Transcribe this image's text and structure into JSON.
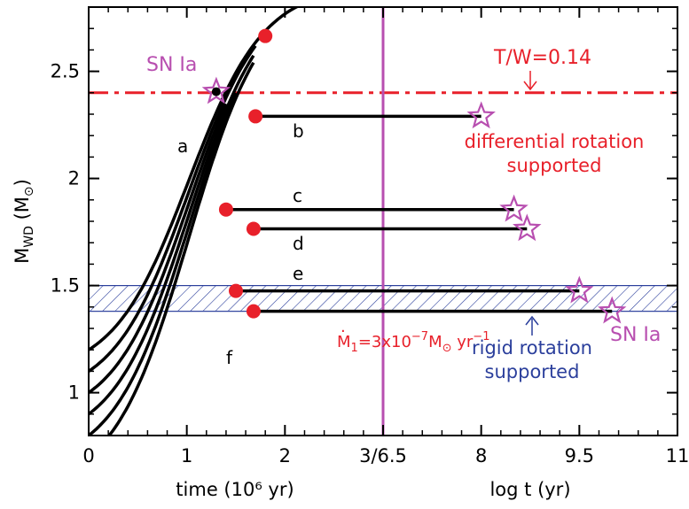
{
  "chart_data": {
    "type": "line",
    "ylabel": {
      "main": "M",
      "sub": "WD",
      "unit_open": " (M",
      "unit_sym": "⊙",
      "unit_close": ")"
    },
    "ylim": [
      0.8,
      2.8
    ],
    "y_ticks": [
      1,
      1.5,
      2,
      2.5
    ],
    "x_segments": [
      {
        "title": "time (10⁶ yr)",
        "range": [
          0,
          3
        ]
      },
      {
        "title": "log t (yr)",
        "range": [
          6.5,
          11
        ]
      }
    ],
    "x_ticks": [
      {
        "label": "0"
      },
      {
        "label": "1"
      },
      {
        "label": "2"
      },
      {
        "label": "3/6.5"
      },
      {
        "label": "8"
      },
      {
        "label": "9.5"
      },
      {
        "label": "11"
      }
    ],
    "threshold_line": {
      "label": "T/W=0.14",
      "y": 2.4,
      "color": "#e8202a"
    },
    "rigid_band": {
      "ymin": 1.38,
      "ymax": 1.5,
      "color": "#2b3f9c"
    },
    "separator_color": "#b84fb0",
    "growth_curves": [
      {
        "label": "a",
        "m0": 1.2,
        "endpoint_t": 1.8,
        "endpoint_m": 2.665
      },
      {
        "label": "b",
        "m0": 1.1,
        "endpoint_t": 1.7,
        "endpoint_m": 2.29,
        "final_logt": 8.0
      },
      {
        "label": "c",
        "m0": 1.0,
        "endpoint_t": 1.4,
        "endpoint_m": 1.855,
        "final_logt": 8.5
      },
      {
        "label": "d",
        "m0": 0.9,
        "endpoint_t": 1.68,
        "endpoint_m": 1.765,
        "final_logt": 8.7
      },
      {
        "label": "e",
        "m0": 0.8,
        "endpoint_t": 1.5,
        "endpoint_m": 1.475,
        "final_logt": 9.5
      },
      {
        "label": "f",
        "m0": 0.7,
        "endpoint_t": 1.68,
        "endpoint_m": 1.38,
        "final_logt": 10.0
      }
    ],
    "sn_star_growth": {
      "t": 1.3,
      "m": 2.405
    },
    "annotations": {
      "sn_top": "SN Ia",
      "diff_line1": "differential rotation",
      "diff_line2": "supported",
      "rigid_line1": "rigid rotation",
      "rigid_line2": "supported",
      "sn_bottom": "SN Ia",
      "mdot_main": "M",
      "mdot_sub": "1",
      "mdot_mid": "=3x10",
      "mdot_exp1": "−7",
      "mdot_unit": "M",
      "mdot_sun": "⊙",
      "mdot_yr": " yr",
      "mdot_exp2": "−1"
    }
  }
}
